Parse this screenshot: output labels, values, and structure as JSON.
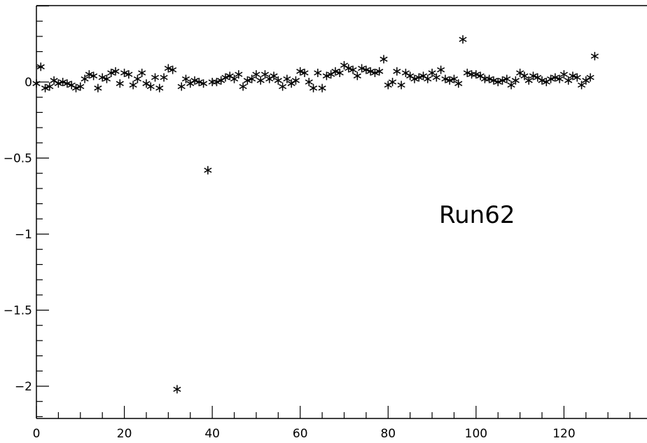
{
  "chart_data": {
    "type": "scatter",
    "title": "",
    "xlabel": "",
    "ylabel": "",
    "xlim": [
      0,
      140
    ],
    "ylim": [
      -2.2,
      0.5
    ],
    "grid": false,
    "marker": "asterisk",
    "x_ticks": [
      0,
      20,
      40,
      60,
      80,
      100,
      120
    ],
    "x_tick_labels": [
      "0",
      "20",
      "40",
      "60",
      "80",
      "100",
      "120"
    ],
    "y_ticks": [
      0,
      -0.5,
      -1,
      -1.5,
      -2
    ],
    "y_tick_labels": [
      "0",
      "−0.5",
      "−1",
      "−1.5",
      "−2"
    ],
    "annotation": "Run62",
    "series": [
      {
        "x": [
          0,
          1,
          2,
          3,
          4,
          5,
          6,
          7,
          8,
          9,
          10,
          11,
          12,
          13,
          14,
          15,
          16,
          17,
          18,
          19,
          20,
          21,
          22,
          23,
          24,
          25,
          26,
          27,
          28,
          29,
          30,
          31,
          32,
          33,
          34,
          35,
          36,
          37,
          38,
          39,
          40,
          41,
          42,
          43,
          44,
          45,
          46,
          47,
          48,
          49,
          50,
          51,
          52,
          53,
          54,
          55,
          56,
          57,
          58,
          59,
          60,
          61,
          62,
          63,
          64,
          65,
          66,
          67,
          68,
          69,
          70,
          71,
          72,
          73,
          74,
          75,
          76,
          77,
          78,
          79,
          80,
          81,
          82,
          83,
          84,
          85,
          86,
          87,
          88,
          89,
          90,
          91,
          92,
          93,
          94,
          95,
          96,
          97,
          98,
          99,
          100,
          101,
          102,
          103,
          104,
          105,
          106,
          107,
          108,
          109,
          110,
          111,
          112,
          113,
          114,
          115,
          116,
          117,
          118,
          119,
          120,
          121,
          122,
          123,
          124,
          125,
          126,
          127
        ],
        "y": [
          -0.01,
          0.1,
          -0.04,
          -0.03,
          0.01,
          -0.01,
          0.0,
          -0.01,
          -0.02,
          -0.04,
          -0.03,
          0.02,
          0.05,
          0.04,
          -0.04,
          0.03,
          0.02,
          0.06,
          0.07,
          -0.01,
          0.06,
          0.05,
          -0.02,
          0.02,
          0.06,
          -0.01,
          -0.03,
          0.03,
          -0.04,
          0.03,
          0.09,
          0.08,
          -2.02,
          -0.03,
          0.02,
          -0.01,
          0.01,
          0.0,
          -0.01,
          -0.58,
          0.0,
          0.0,
          0.01,
          0.03,
          0.04,
          0.02,
          0.05,
          -0.03,
          0.01,
          0.02,
          0.05,
          0.01,
          0.05,
          0.02,
          0.04,
          0.01,
          -0.03,
          0.02,
          -0.01,
          0.01,
          0.07,
          0.06,
          0.0,
          -0.04,
          0.06,
          -0.04,
          0.04,
          0.05,
          0.07,
          0.06,
          0.11,
          0.09,
          0.08,
          0.04,
          0.09,
          0.08,
          0.07,
          0.06,
          0.07,
          0.15,
          -0.02,
          0.0,
          0.07,
          -0.02,
          0.06,
          0.04,
          0.02,
          0.03,
          0.04,
          0.02,
          0.06,
          0.03,
          0.08,
          0.02,
          0.01,
          0.02,
          -0.01,
          0.28,
          0.06,
          0.05,
          0.05,
          0.04,
          0.02,
          0.02,
          0.01,
          0.0,
          0.01,
          0.02,
          -0.02,
          0.01,
          0.06,
          0.04,
          0.01,
          0.04,
          0.03,
          0.01,
          0.0,
          0.02,
          0.03,
          0.02,
          0.05,
          0.01,
          0.04,
          0.03,
          -0.02,
          0.01,
          0.03,
          0.17
        ]
      }
    ]
  }
}
